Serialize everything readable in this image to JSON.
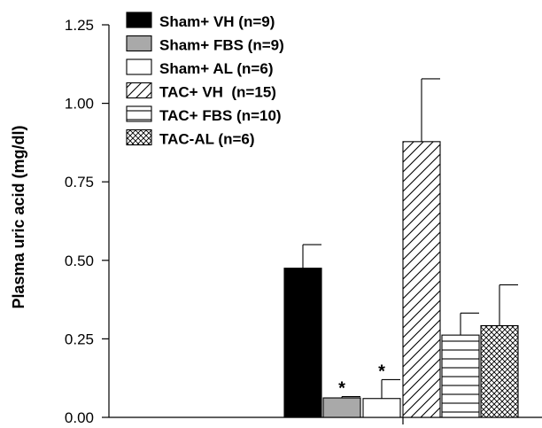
{
  "chart_data": {
    "type": "bar",
    "ylabel": "Plasma uric acid (mg/dl)",
    "ylim": [
      0,
      1.25
    ],
    "yticks": [
      "0.00",
      "0.25",
      "0.50",
      "0.75",
      "1.00",
      "1.25"
    ],
    "grid": false,
    "legend_position": "top-left",
    "series": [
      {
        "name": "Sham+ VH (n=9)",
        "value": 0.475,
        "error": 0.075,
        "fill": "#000000",
        "pattern": "solid",
        "annotation": ""
      },
      {
        "name": "Sham+ FBS (n=9)",
        "value": 0.062,
        "error": 0.004,
        "fill": "#a9a9a9",
        "pattern": "solid",
        "annotation": "*"
      },
      {
        "name": "Sham+ AL (n=6)",
        "value": 0.06,
        "error": 0.06,
        "fill": "#ffffff",
        "pattern": "solid",
        "annotation": "*"
      },
      {
        "name": "TAC+ VH  (n=15)",
        "value": 0.878,
        "error": 0.2,
        "fill": "#ffffff",
        "pattern": "diagonal",
        "annotation": ""
      },
      {
        "name": "TAC+ FBS (n=10)",
        "value": 0.262,
        "error": 0.07,
        "fill": "#ffffff",
        "pattern": "horizontal",
        "annotation": ""
      },
      {
        "name": "TAC-AL (n=6)",
        "value": 0.292,
        "error": 0.13,
        "fill": "#ffffff",
        "pattern": "crosshatch",
        "annotation": ""
      }
    ]
  }
}
